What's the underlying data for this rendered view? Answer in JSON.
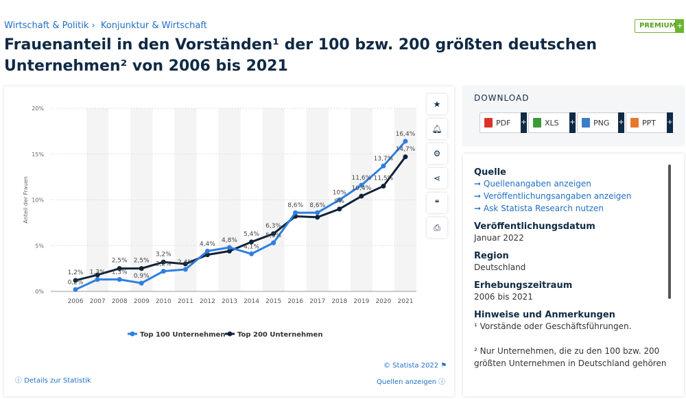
{
  "breadcrumb": [
    "Wirtschaft & Politik ›",
    "Konjunktur & Wirtschaft"
  ],
  "premium": {
    "label": "PREMIUM",
    "plus": "+"
  },
  "title": "Frauenanteil in den Vorständen¹ der 100 bzw. 200 größten deutschen Unternehmen² von 2006 bis 2021",
  "tools": [
    "star-icon",
    "bell-icon",
    "gear-icon",
    "share-icon",
    "quote-icon",
    "print-icon"
  ],
  "footer": {
    "copyright": "© Statista 2022",
    "details": "Details zur Statistik",
    "sources": "Quellen anzeigen"
  },
  "download": {
    "title": "DOWNLOAD",
    "buttons": [
      {
        "label": "PDF",
        "color": "#d9342b"
      },
      {
        "label": "XLS",
        "color": "#3a9a3a"
      },
      {
        "label": "PNG",
        "color": "#3a7ec5"
      },
      {
        "label": "PPT",
        "color": "#e8772e"
      }
    ]
  },
  "info": {
    "quelle_title": "Quelle",
    "links": [
      "Quellenangaben anzeigen",
      "Veröffentlichungsangaben anzeigen",
      "Ask Statista Research nutzen"
    ],
    "date_title": "Veröffentlichungsdatum",
    "date": "Januar 2022",
    "region_title": "Region",
    "region": "Deutschland",
    "period_title": "Erhebungszeitraum",
    "period": "2006 bis 2021",
    "notes_title": "Hinweise und Anmerkungen",
    "note1": "¹ Vorstände oder Geschäftsführungen.",
    "note2": "² Nur Unternehmen, die zu den 100 bzw. 200 größten Unternehmen in Deutschland gehören"
  },
  "chart_data": {
    "type": "line",
    "ylabel": "Anteil der Frauen",
    "ylim": [
      0,
      20
    ],
    "yticks": [
      "0%",
      "5%",
      "10%",
      "15%",
      "20%"
    ],
    "grid": true,
    "legend": "bottom",
    "categories": [
      "2006",
      "2007",
      "2008",
      "2009",
      "2010",
      "2011",
      "2012",
      "2013",
      "2014",
      "2015",
      "2016",
      "2017",
      "2018",
      "2019",
      "2020",
      "2021"
    ],
    "series": [
      {
        "name": "Top 100 Unternehmen",
        "color": "#2f7ee0",
        "values": [
          0.2,
          1.3,
          1.3,
          0.9,
          2.2,
          2.4,
          4.4,
          4.8,
          4.1,
          5.3,
          8.6,
          8.6,
          10,
          11.6,
          13.7,
          16.4
        ],
        "labels": [
          "0,2%",
          "1,3%",
          "1,3%",
          "0,9%",
          "2,2%",
          "2,4%",
          "4,4%",
          "4,8%",
          "4,1%",
          "5,3%",
          "8,6%",
          "8,6%",
          "10%",
          "11,6%",
          "13,7%",
          "16,4%"
        ]
      },
      {
        "name": "Top 200 Unternehmen",
        "color": "#0f2238",
        "values": [
          1.2,
          1.8,
          2.5,
          2.5,
          3.2,
          3.0,
          4.0,
          4.4,
          5.4,
          6.3,
          8.2,
          8.1,
          9,
          10.4,
          11.5,
          14.7
        ],
        "labels": [
          "1,2%",
          "",
          "2,5%",
          "2,5%",
          "3,2%",
          "",
          "",
          "",
          "5,4%",
          "6,3%",
          "",
          "",
          "9%",
          "10,4%",
          "11,5%",
          "14,7%"
        ]
      }
    ]
  }
}
